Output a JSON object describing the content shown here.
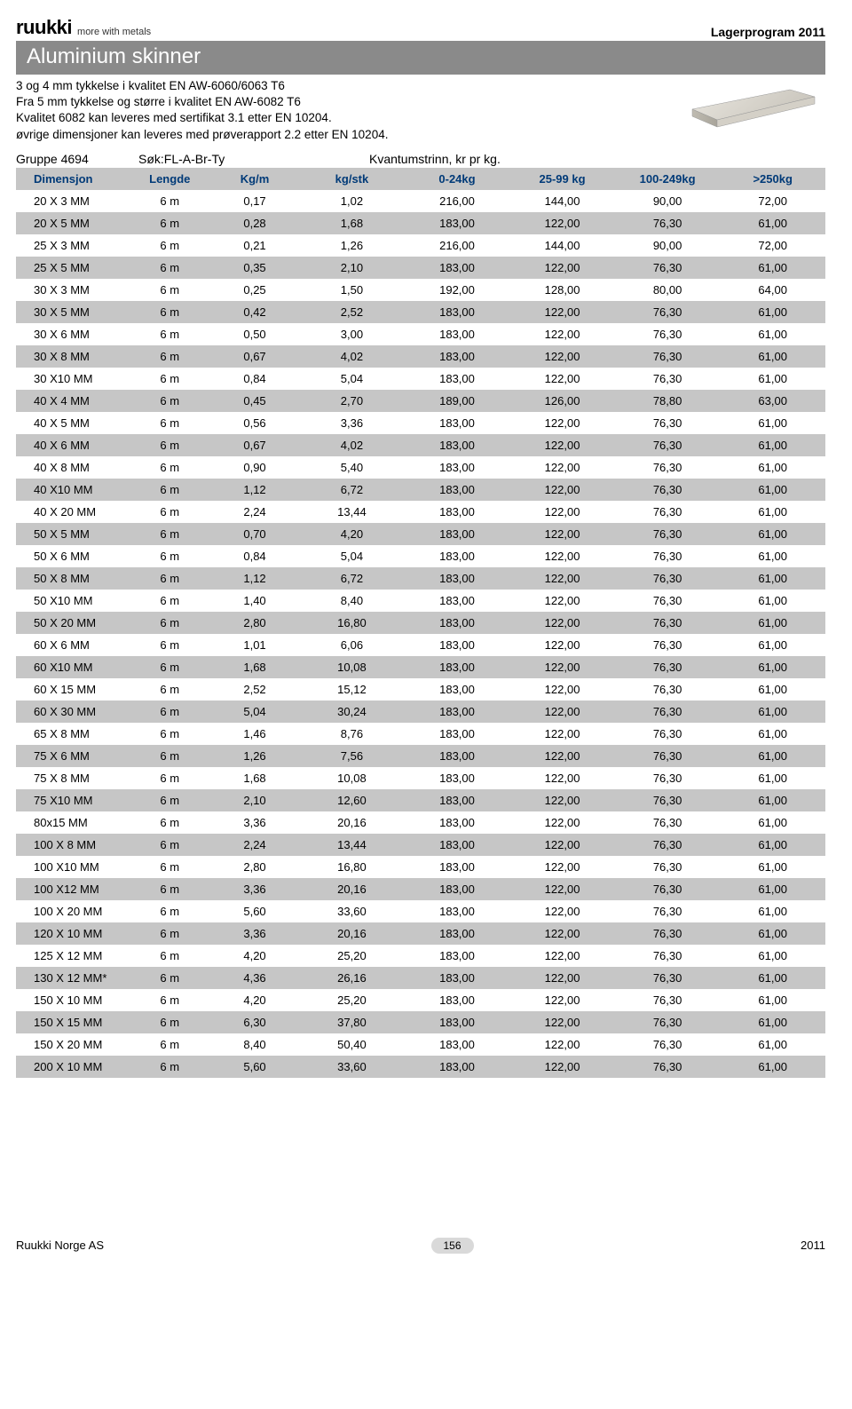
{
  "logo": {
    "brand": "ruukki",
    "tagline": "more with metals"
  },
  "doc_title": "Lagerprogram 2011",
  "title_bar": "Aluminium skinner",
  "intro_lines": [
    "3 og 4 mm tykkelse i kvalitet EN AW-6060/6063 T6",
    "Fra 5 mm tykkelse og større i kvalitet EN AW-6082 T6",
    "Kvalitet 6082 kan leveres med sertifikat 3.1 etter EN 10204.",
    "øvrige dimensjoner kan leveres med prøverapport 2.2 etter EN 10204."
  ],
  "group_row": {
    "group": "Gruppe 4694",
    "search": "Søk:FL-A-Br-Ty",
    "qty_label": "Kvantumstrinn, kr pr kg."
  },
  "table": {
    "columns": [
      "Dimensjon",
      "Lengde",
      "Kg/m",
      "kg/stk",
      "0-24kg",
      "25-99 kg",
      "100-249kg",
      ">250kg"
    ],
    "rows": [
      [
        "20 X 3 MM",
        "6 m",
        "0,17",
        "1,02",
        "216,00",
        "144,00",
        "90,00",
        "72,00"
      ],
      [
        "20 X 5 MM",
        "6 m",
        "0,28",
        "1,68",
        "183,00",
        "122,00",
        "76,30",
        "61,00"
      ],
      [
        "25 X 3 MM",
        "6 m",
        "0,21",
        "1,26",
        "216,00",
        "144,00",
        "90,00",
        "72,00"
      ],
      [
        "25 X 5 MM",
        "6 m",
        "0,35",
        "2,10",
        "183,00",
        "122,00",
        "76,30",
        "61,00"
      ],
      [
        "30 X 3 MM",
        "6 m",
        "0,25",
        "1,50",
        "192,00",
        "128,00",
        "80,00",
        "64,00"
      ],
      [
        "30 X 5 MM",
        "6 m",
        "0,42",
        "2,52",
        "183,00",
        "122,00",
        "76,30",
        "61,00"
      ],
      [
        "30 X 6 MM",
        "6 m",
        "0,50",
        "3,00",
        "183,00",
        "122,00",
        "76,30",
        "61,00"
      ],
      [
        "30 X 8 MM",
        "6 m",
        "0,67",
        "4,02",
        "183,00",
        "122,00",
        "76,30",
        "61,00"
      ],
      [
        "30 X10 MM",
        "6 m",
        "0,84",
        "5,04",
        "183,00",
        "122,00",
        "76,30",
        "61,00"
      ],
      [
        "40 X 4 MM",
        "6 m",
        "0,45",
        "2,70",
        "189,00",
        "126,00",
        "78,80",
        "63,00"
      ],
      [
        "40 X 5 MM",
        "6 m",
        "0,56",
        "3,36",
        "183,00",
        "122,00",
        "76,30",
        "61,00"
      ],
      [
        "40 X 6 MM",
        "6 m",
        "0,67",
        "4,02",
        "183,00",
        "122,00",
        "76,30",
        "61,00"
      ],
      [
        "40 X 8 MM",
        "6 m",
        "0,90",
        "5,40",
        "183,00",
        "122,00",
        "76,30",
        "61,00"
      ],
      [
        "40 X10 MM",
        "6 m",
        "1,12",
        "6,72",
        "183,00",
        "122,00",
        "76,30",
        "61,00"
      ],
      [
        "40 X 20 MM",
        "6 m",
        "2,24",
        "13,44",
        "183,00",
        "122,00",
        "76,30",
        "61,00"
      ],
      [
        "50 X  5 MM",
        "6 m",
        "0,70",
        "4,20",
        "183,00",
        "122,00",
        "76,30",
        "61,00"
      ],
      [
        "50 X 6 MM",
        "6 m",
        "0,84",
        "5,04",
        "183,00",
        "122,00",
        "76,30",
        "61,00"
      ],
      [
        "50 X 8 MM",
        "6 m",
        "1,12",
        "6,72",
        "183,00",
        "122,00",
        "76,30",
        "61,00"
      ],
      [
        "50 X10 MM",
        "6 m",
        "1,40",
        "8,40",
        "183,00",
        "122,00",
        "76,30",
        "61,00"
      ],
      [
        "50 X 20 MM",
        "6 m",
        "2,80",
        "16,80",
        "183,00",
        "122,00",
        "76,30",
        "61,00"
      ],
      [
        "60 X 6 MM",
        "6 m",
        "1,01",
        "6,06",
        "183,00",
        "122,00",
        "76,30",
        "61,00"
      ],
      [
        "60 X10 MM",
        "6 m",
        "1,68",
        "10,08",
        "183,00",
        "122,00",
        "76,30",
        "61,00"
      ],
      [
        "60 X 15 MM",
        "6 m",
        "2,52",
        "15,12",
        "183,00",
        "122,00",
        "76,30",
        "61,00"
      ],
      [
        "60 X 30 MM",
        "6 m",
        "5,04",
        "30,24",
        "183,00",
        "122,00",
        "76,30",
        "61,00"
      ],
      [
        "65 X 8 MM",
        "6 m",
        "1,46",
        "8,76",
        "183,00",
        "122,00",
        "76,30",
        "61,00"
      ],
      [
        "75 X 6 MM",
        "6 m",
        "1,26",
        "7,56",
        "183,00",
        "122,00",
        "76,30",
        "61,00"
      ],
      [
        "75 X 8 MM",
        "6 m",
        "1,68",
        "10,08",
        "183,00",
        "122,00",
        "76,30",
        "61,00"
      ],
      [
        "75 X10 MM",
        "6 m",
        "2,10",
        "12,60",
        "183,00",
        "122,00",
        "76,30",
        "61,00"
      ],
      [
        "80x15 MM",
        "6 m",
        "3,36",
        "20,16",
        "183,00",
        "122,00",
        "76,30",
        "61,00"
      ],
      [
        "100 X 8 MM",
        "6 m",
        "2,24",
        "13,44",
        "183,00",
        "122,00",
        "76,30",
        "61,00"
      ],
      [
        "100 X10 MM",
        "6 m",
        "2,80",
        "16,80",
        "183,00",
        "122,00",
        "76,30",
        "61,00"
      ],
      [
        "100 X12 MM",
        "6 m",
        "3,36",
        "20,16",
        "183,00",
        "122,00",
        "76,30",
        "61,00"
      ],
      [
        "100 X 20 MM",
        "6 m",
        "5,60",
        "33,60",
        "183,00",
        "122,00",
        "76,30",
        "61,00"
      ],
      [
        "120 X 10 MM",
        "6 m",
        "3,36",
        "20,16",
        "183,00",
        "122,00",
        "76,30",
        "61,00"
      ],
      [
        "125 X 12 MM",
        "6 m",
        "4,20",
        "25,20",
        "183,00",
        "122,00",
        "76,30",
        "61,00"
      ],
      [
        "130 X 12 MM*",
        "6 m",
        "4,36",
        "26,16",
        "183,00",
        "122,00",
        "76,30",
        "61,00"
      ],
      [
        "150 X 10 MM",
        "6 m",
        "4,20",
        "25,20",
        "183,00",
        "122,00",
        "76,30",
        "61,00"
      ],
      [
        "150 X 15 MM",
        "6 m",
        "6,30",
        "37,80",
        "183,00",
        "122,00",
        "76,30",
        "61,00"
      ],
      [
        "150 X 20 MM",
        "6 m",
        "8,40",
        "50,40",
        "183,00",
        "122,00",
        "76,30",
        "61,00"
      ],
      [
        "200 X 10 MM",
        "6 m",
        "5,60",
        "33,60",
        "183,00",
        "122,00",
        "76,30",
        "61,00"
      ]
    ]
  },
  "footer": {
    "company": "Ruukki Norge AS",
    "page": "156",
    "year": "2011"
  },
  "colors": {
    "header_bg": "#c6c6c6",
    "header_text": "#003a78",
    "row_alt_bg": "#c6c6c6",
    "title_bar_bg": "#8a8a8a"
  }
}
